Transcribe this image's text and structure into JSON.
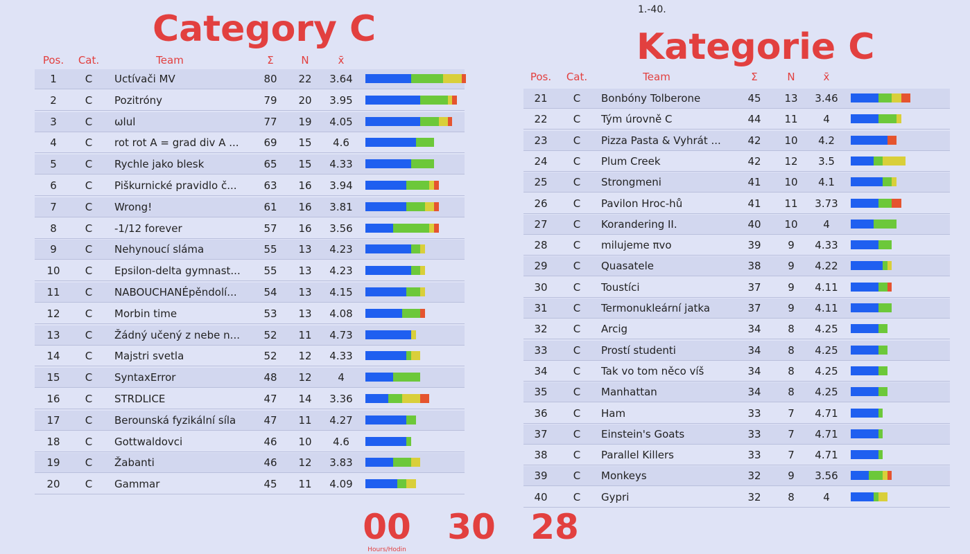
{
  "range_label": "1.-40.",
  "bar_colors": [
    "#1f5ff0",
    "#6cc83a",
    "#d9cf3a",
    "#e5542f"
  ],
  "tables": [
    {
      "title": "Category C",
      "headers": [
        "Pos.",
        "Cat.",
        "Team",
        "Σ",
        "N",
        "x̄"
      ],
      "rows": [
        {
          "pos": 1,
          "cat": "C",
          "team": "Uctívači MV",
          "sum": 80,
          "n": 22,
          "avg": 3.64,
          "bar": [
            10,
            7,
            4,
            1
          ]
        },
        {
          "pos": 2,
          "cat": "C",
          "team": "Pozitróny",
          "sum": 79,
          "n": 20,
          "avg": 3.95,
          "bar": [
            12,
            6,
            1,
            1
          ]
        },
        {
          "pos": 3,
          "cat": "C",
          "team": "ωlul",
          "sum": 77,
          "n": 19,
          "avg": 4.05,
          "bar": [
            12,
            4,
            2,
            1
          ]
        },
        {
          "pos": 4,
          "cat": "C",
          "team": "rot rot A = grad div A ...",
          "sum": 69,
          "n": 15,
          "avg": 4.6,
          "bar": [
            11,
            4,
            0,
            0
          ]
        },
        {
          "pos": 5,
          "cat": "C",
          "team": "Rychle jako blesk",
          "sum": 65,
          "n": 15,
          "avg": 4.33,
          "bar": [
            10,
            5,
            0,
            0
          ]
        },
        {
          "pos": 6,
          "cat": "C",
          "team": "Piškurnické pravidlo č...",
          "sum": 63,
          "n": 16,
          "avg": 3.94,
          "bar": [
            9,
            5,
            1,
            1
          ]
        },
        {
          "pos": 7,
          "cat": "C",
          "team": "Wrong!",
          "sum": 61,
          "n": 16,
          "avg": 3.81,
          "bar": [
            9,
            4,
            2,
            1
          ]
        },
        {
          "pos": 8,
          "cat": "C",
          "team": "-1/12 forever",
          "sum": 57,
          "n": 16,
          "avg": 3.56,
          "bar": [
            6,
            8,
            1,
            1
          ]
        },
        {
          "pos": 9,
          "cat": "C",
          "team": "Nehynoucí sláma",
          "sum": 55,
          "n": 13,
          "avg": 4.23,
          "bar": [
            10,
            2,
            1,
            0
          ]
        },
        {
          "pos": 10,
          "cat": "C",
          "team": "Epsilon-delta gymnast...",
          "sum": 55,
          "n": 13,
          "avg": 4.23,
          "bar": [
            10,
            2,
            1,
            0
          ]
        },
        {
          "pos": 11,
          "cat": "C",
          "team": "NABOUCHANÉpěndolí...",
          "sum": 54,
          "n": 13,
          "avg": 4.15,
          "bar": [
            9,
            3,
            1,
            0
          ]
        },
        {
          "pos": 12,
          "cat": "C",
          "team": "Morbin time",
          "sum": 53,
          "n": 13,
          "avg": 4.08,
          "bar": [
            8,
            4,
            0,
            1
          ]
        },
        {
          "pos": 13,
          "cat": "C",
          "team": "Žádný učený z nebe n...",
          "sum": 52,
          "n": 11,
          "avg": 4.73,
          "bar": [
            10,
            0,
            1,
            0
          ]
        },
        {
          "pos": 14,
          "cat": "C",
          "team": "Majstri svetla",
          "sum": 52,
          "n": 12,
          "avg": 4.33,
          "bar": [
            9,
            1,
            2,
            0
          ]
        },
        {
          "pos": 15,
          "cat": "C",
          "team": "SyntaxError",
          "sum": 48,
          "n": 12,
          "avg": 4,
          "bar": [
            6,
            6,
            0,
            0
          ]
        },
        {
          "pos": 16,
          "cat": "C",
          "team": "STRDLICE",
          "sum": 47,
          "n": 14,
          "avg": 3.36,
          "bar": [
            5,
            3,
            4,
            2
          ]
        },
        {
          "pos": 17,
          "cat": "C",
          "team": "Berounská fyzikální síla",
          "sum": 47,
          "n": 11,
          "avg": 4.27,
          "bar": [
            9,
            2,
            0,
            0
          ]
        },
        {
          "pos": 18,
          "cat": "C",
          "team": "Gottwaldovci",
          "sum": 46,
          "n": 10,
          "avg": 4.6,
          "bar": [
            9,
            1,
            0,
            0
          ]
        },
        {
          "pos": 19,
          "cat": "C",
          "team": "Žabanti",
          "sum": 46,
          "n": 12,
          "avg": 3.83,
          "bar": [
            6,
            4,
            2,
            0
          ]
        },
        {
          "pos": 20,
          "cat": "C",
          "team": "Gammar",
          "sum": 45,
          "n": 11,
          "avg": 4.09,
          "bar": [
            7,
            2,
            2,
            0
          ]
        }
      ]
    },
    {
      "title": "Kategorie C",
      "headers": [
        "Pos.",
        "Cat.",
        "Team",
        "Σ",
        "N",
        "x̄"
      ],
      "rows": [
        {
          "pos": 21,
          "cat": "C",
          "team": "Bonbóny Tolberone",
          "sum": 45,
          "n": 13,
          "avg": 3.46,
          "bar": [
            6,
            3,
            2,
            2
          ]
        },
        {
          "pos": 22,
          "cat": "C",
          "team": "Tým úrovně C",
          "sum": 44,
          "n": 11,
          "avg": 4,
          "bar": [
            6,
            4,
            1,
            0
          ]
        },
        {
          "pos": 23,
          "cat": "C",
          "team": "Pizza Pasta & Vyhrát ...",
          "sum": 42,
          "n": 10,
          "avg": 4.2,
          "bar": [
            8,
            0,
            0,
            2
          ]
        },
        {
          "pos": 24,
          "cat": "C",
          "team": "Plum Creek",
          "sum": 42,
          "n": 12,
          "avg": 3.5,
          "bar": [
            5,
            2,
            5,
            0
          ]
        },
        {
          "pos": 25,
          "cat": "C",
          "team": "Strongmeni",
          "sum": 41,
          "n": 10,
          "avg": 4.1,
          "bar": [
            7,
            2,
            1,
            0
          ]
        },
        {
          "pos": 26,
          "cat": "C",
          "team": "Pavilon Hroc-hů",
          "sum": 41,
          "n": 11,
          "avg": 3.73,
          "bar": [
            6,
            3,
            0,
            2
          ]
        },
        {
          "pos": 27,
          "cat": "C",
          "team": "Korandering II.",
          "sum": 40,
          "n": 10,
          "avg": 4,
          "bar": [
            5,
            5,
            0,
            0
          ]
        },
        {
          "pos": 28,
          "cat": "C",
          "team": "milujeme πvo",
          "sum": 39,
          "n": 9,
          "avg": 4.33,
          "bar": [
            6,
            3,
            0,
            0
          ]
        },
        {
          "pos": 29,
          "cat": "C",
          "team": "Quasatele",
          "sum": 38,
          "n": 9,
          "avg": 4.22,
          "bar": [
            7,
            1,
            1,
            0
          ]
        },
        {
          "pos": 30,
          "cat": "C",
          "team": "Toustíci",
          "sum": 37,
          "n": 9,
          "avg": 4.11,
          "bar": [
            6,
            2,
            0,
            1
          ]
        },
        {
          "pos": 31,
          "cat": "C",
          "team": "Termonukleární jatka",
          "sum": 37,
          "n": 9,
          "avg": 4.11,
          "bar": [
            6,
            3,
            0,
            0
          ]
        },
        {
          "pos": 32,
          "cat": "C",
          "team": "Arcig",
          "sum": 34,
          "n": 8,
          "avg": 4.25,
          "bar": [
            6,
            2,
            0,
            0
          ]
        },
        {
          "pos": 33,
          "cat": "C",
          "team": "Prostí studenti",
          "sum": 34,
          "n": 8,
          "avg": 4.25,
          "bar": [
            6,
            2,
            0,
            0
          ]
        },
        {
          "pos": 34,
          "cat": "C",
          "team": "Tak vo tom něco víš",
          "sum": 34,
          "n": 8,
          "avg": 4.25,
          "bar": [
            6,
            2,
            0,
            0
          ]
        },
        {
          "pos": 35,
          "cat": "C",
          "team": "Manhattan",
          "sum": 34,
          "n": 8,
          "avg": 4.25,
          "bar": [
            6,
            2,
            0,
            0
          ]
        },
        {
          "pos": 36,
          "cat": "C",
          "team": "Ham",
          "sum": 33,
          "n": 7,
          "avg": 4.71,
          "bar": [
            6,
            1,
            0,
            0
          ]
        },
        {
          "pos": 37,
          "cat": "C",
          "team": "Einstein's Goats",
          "sum": 33,
          "n": 7,
          "avg": 4.71,
          "bar": [
            6,
            1,
            0,
            0
          ]
        },
        {
          "pos": 38,
          "cat": "C",
          "team": "Parallel Killers",
          "sum": 33,
          "n": 7,
          "avg": 4.71,
          "bar": [
            6,
            1,
            0,
            0
          ]
        },
        {
          "pos": 39,
          "cat": "C",
          "team": "Monkeys",
          "sum": 32,
          "n": 9,
          "avg": 3.56,
          "bar": [
            4,
            3,
            1,
            1
          ]
        },
        {
          "pos": 40,
          "cat": "C",
          "team": "Gypri",
          "sum": 32,
          "n": 8,
          "avg": 4,
          "bar": [
            5,
            1,
            2,
            0
          ]
        }
      ]
    }
  ],
  "timer": {
    "values": [
      "00",
      "30",
      "28"
    ],
    "labels": [
      "Hours/Hodin"
    ]
  }
}
